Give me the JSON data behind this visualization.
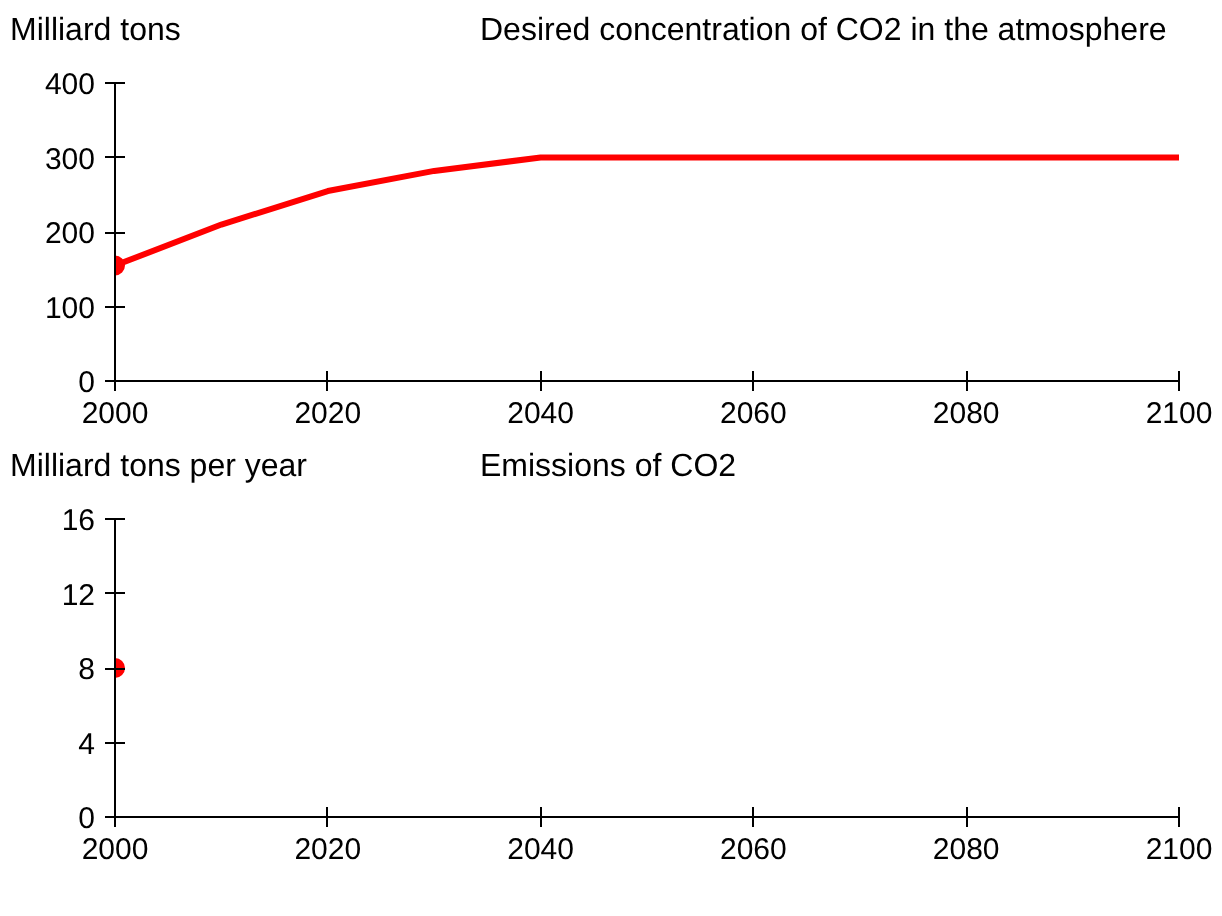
{
  "chart_data": [
    {
      "type": "line",
      "title": "Desired concentration of CO2 in the atmosphere",
      "ylabel": "Milliard tons",
      "xlim": [
        2000,
        2100
      ],
      "xticks": [
        2000,
        2020,
        2040,
        2060,
        2080,
        2100
      ],
      "ylim": [
        0,
        400
      ],
      "yticks": [
        0,
        100,
        200,
        300,
        400
      ],
      "series": [
        {
          "color": "#ff0000",
          "x": [
            2000,
            2010,
            2020,
            2030,
            2040,
            2060,
            2080,
            2100
          ],
          "values": [
            155,
            210,
            255,
            282,
            300,
            300,
            300,
            300
          ]
        },
        {
          "type": "scatter",
          "color": "#ff0000",
          "x": [
            2000
          ],
          "values": [
            155
          ],
          "marker": "circle"
        }
      ]
    },
    {
      "type": "scatter",
      "title": "Emissions of CO2",
      "ylabel": "Milliard tons per year",
      "xlim": [
        2000,
        2100
      ],
      "xticks": [
        2000,
        2020,
        2040,
        2060,
        2080,
        2100
      ],
      "ylim": [
        0,
        16
      ],
      "yticks": [
        0,
        4,
        8,
        12,
        16
      ],
      "series": [
        {
          "color": "#ff0000",
          "x": [
            2000
          ],
          "values": [
            8
          ],
          "marker": "circle"
        }
      ]
    }
  ]
}
